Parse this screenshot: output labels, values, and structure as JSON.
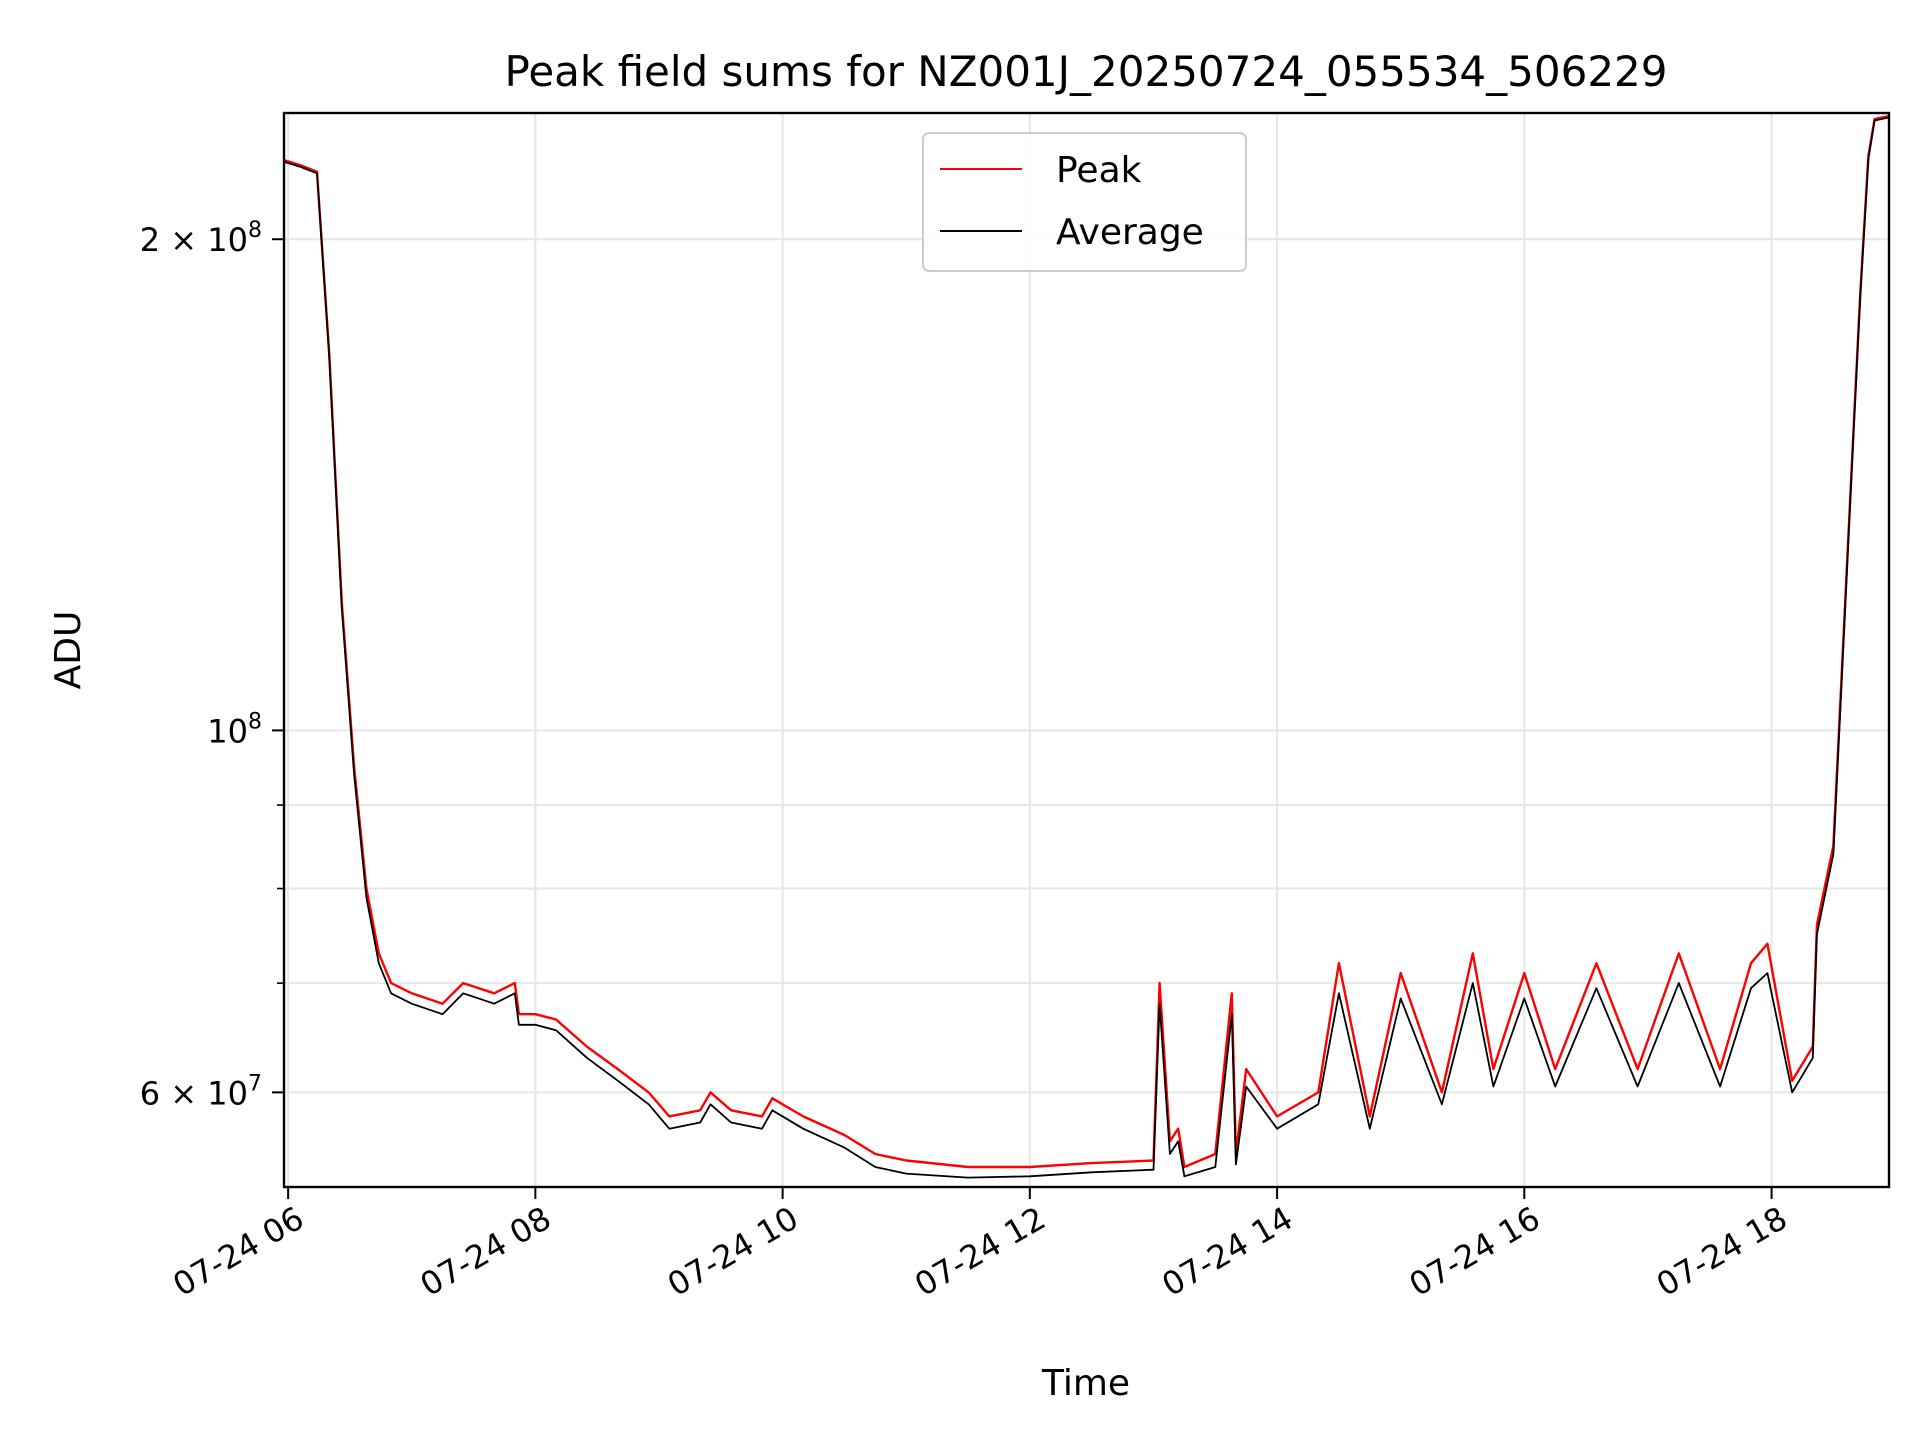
{
  "chart_data": {
    "type": "line",
    "title": "Peak field sums for NZ001J_20250724_055534_506229",
    "xlabel": "Time",
    "ylabel": "ADU",
    "yscale": "log",
    "xlim": [
      "2025-07-24T05:58",
      "2025-07-24T18:57"
    ],
    "ylim": [
      52500000,
      239000000
    ],
    "grid": true,
    "legend": "upper center",
    "x_ticks": [
      {
        "value": "2025-07-24T06:00",
        "label": "07-24 06"
      },
      {
        "value": "2025-07-24T08:00",
        "label": "07-24 08"
      },
      {
        "value": "2025-07-24T10:00",
        "label": "07-24 10"
      },
      {
        "value": "2025-07-24T12:00",
        "label": "07-24 12"
      },
      {
        "value": "2025-07-24T14:00",
        "label": "07-24 14"
      },
      {
        "value": "2025-07-24T16:00",
        "label": "07-24 16"
      },
      {
        "value": "2025-07-24T18:00",
        "label": "07-24 18"
      }
    ],
    "y_major_ticks": [
      {
        "value": 60000000,
        "base": "6 × 10",
        "exp": "7"
      },
      {
        "value": 100000000,
        "base": "10",
        "exp": "8"
      },
      {
        "value": 200000000,
        "base": "2 × 10",
        "exp": "8"
      }
    ],
    "y_minor_ticks": [
      70000000,
      80000000,
      90000000
    ],
    "series": [
      {
        "name": "Peak",
        "color": "#ff0000",
        "x": [
          "2025-07-24T05:56",
          "2025-07-24T06:06",
          "2025-07-24T06:14",
          "2025-07-24T06:20",
          "2025-07-24T06:26",
          "2025-07-24T06:32",
          "2025-07-24T06:38",
          "2025-07-24T06:44",
          "2025-07-24T06:50",
          "2025-07-24T07:00",
          "2025-07-24T07:15",
          "2025-07-24T07:25",
          "2025-07-24T07:40",
          "2025-07-24T07:50",
          "2025-07-24T07:52",
          "2025-07-24T08:00",
          "2025-07-24T08:10",
          "2025-07-24T08:25",
          "2025-07-24T08:40",
          "2025-07-24T08:55",
          "2025-07-24T09:05",
          "2025-07-24T09:20",
          "2025-07-24T09:25",
          "2025-07-24T09:35",
          "2025-07-24T09:50",
          "2025-07-24T09:55",
          "2025-07-24T10:10",
          "2025-07-24T10:30",
          "2025-07-24T10:45",
          "2025-07-24T11:00",
          "2025-07-24T11:30",
          "2025-07-24T12:00",
          "2025-07-24T12:30",
          "2025-07-24T13:00",
          "2025-07-24T13:03",
          "2025-07-24T13:08",
          "2025-07-24T13:12",
          "2025-07-24T13:15",
          "2025-07-24T13:30",
          "2025-07-24T13:38",
          "2025-07-24T13:40",
          "2025-07-24T13:45",
          "2025-07-24T14:00",
          "2025-07-24T14:20",
          "2025-07-24T14:30",
          "2025-07-24T14:45",
          "2025-07-24T15:00",
          "2025-07-24T15:20",
          "2025-07-24T15:35",
          "2025-07-24T15:45",
          "2025-07-24T16:00",
          "2025-07-24T16:15",
          "2025-07-24T16:35",
          "2025-07-24T16:55",
          "2025-07-24T17:15",
          "2025-07-24T17:35",
          "2025-07-24T17:50",
          "2025-07-24T17:58",
          "2025-07-24T18:10",
          "2025-07-24T18:20",
          "2025-07-24T18:22",
          "2025-07-24T18:30",
          "2025-07-24T18:40",
          "2025-07-24T18:43",
          "2025-07-24T18:47",
          "2025-07-24T18:50",
          "2025-07-24T18:57"
        ],
        "values": [
          224000000,
          222000000,
          220000000,
          170000000,
          120000000,
          95000000,
          80000000,
          73000000,
          70000000,
          69000000,
          68000000,
          70000000,
          69000000,
          70000000,
          67000000,
          67000000,
          66500000,
          64000000,
          62000000,
          60000000,
          58000000,
          58500000,
          60000000,
          58500000,
          58000000,
          59500000,
          58000000,
          56500000,
          55000000,
          54500000,
          54000000,
          54000000,
          54300000,
          54500000,
          70000000,
          56000000,
          57000000,
          54000000,
          55000000,
          69000000,
          55000000,
          62000000,
          58000000,
          60000000,
          72000000,
          58000000,
          71000000,
          60000000,
          73000000,
          62000000,
          71000000,
          62000000,
          72000000,
          62000000,
          73000000,
          62000000,
          72000000,
          74000000,
          61000000,
          64000000,
          76000000,
          85000000,
          155000000,
          185000000,
          225000000,
          237000000,
          238000000
        ]
      },
      {
        "name": "Average",
        "color": "#000000",
        "x": [
          "2025-07-24T05:56",
          "2025-07-24T06:06",
          "2025-07-24T06:14",
          "2025-07-24T06:20",
          "2025-07-24T06:26",
          "2025-07-24T06:32",
          "2025-07-24T06:38",
          "2025-07-24T06:44",
          "2025-07-24T06:50",
          "2025-07-24T07:00",
          "2025-07-24T07:15",
          "2025-07-24T07:25",
          "2025-07-24T07:40",
          "2025-07-24T07:50",
          "2025-07-24T07:52",
          "2025-07-24T08:00",
          "2025-07-24T08:10",
          "2025-07-24T08:25",
          "2025-07-24T08:40",
          "2025-07-24T08:55",
          "2025-07-24T09:05",
          "2025-07-24T09:20",
          "2025-07-24T09:25",
          "2025-07-24T09:35",
          "2025-07-24T09:50",
          "2025-07-24T09:55",
          "2025-07-24T10:10",
          "2025-07-24T10:30",
          "2025-07-24T10:45",
          "2025-07-24T11:00",
          "2025-07-24T11:30",
          "2025-07-24T12:00",
          "2025-07-24T12:30",
          "2025-07-24T13:00",
          "2025-07-24T13:03",
          "2025-07-24T13:08",
          "2025-07-24T13:12",
          "2025-07-24T13:15",
          "2025-07-24T13:30",
          "2025-07-24T13:38",
          "2025-07-24T13:40",
          "2025-07-24T13:45",
          "2025-07-24T14:00",
          "2025-07-24T14:20",
          "2025-07-24T14:30",
          "2025-07-24T14:45",
          "2025-07-24T15:00",
          "2025-07-24T15:20",
          "2025-07-24T15:35",
          "2025-07-24T15:45",
          "2025-07-24T16:00",
          "2025-07-24T16:15",
          "2025-07-24T16:35",
          "2025-07-24T16:55",
          "2025-07-24T17:15",
          "2025-07-24T17:35",
          "2025-07-24T17:50",
          "2025-07-24T17:58",
          "2025-07-24T18:10",
          "2025-07-24T18:20",
          "2025-07-24T18:22",
          "2025-07-24T18:30",
          "2025-07-24T18:40",
          "2025-07-24T18:43",
          "2025-07-24T18:47",
          "2025-07-24T18:50",
          "2025-07-24T18:57"
        ],
        "values": [
          223500000,
          221500000,
          219500000,
          169000000,
          119000000,
          94000000,
          79000000,
          72000000,
          69000000,
          68000000,
          67000000,
          69000000,
          68000000,
          69000000,
          66000000,
          66000000,
          65500000,
          63000000,
          61000000,
          59000000,
          57000000,
          57500000,
          59000000,
          57500000,
          57000000,
          58500000,
          57000000,
          55500000,
          54000000,
          53500000,
          53200000,
          53300000,
          53600000,
          53800000,
          68000000,
          55000000,
          56000000,
          53300000,
          54000000,
          67000000,
          54200000,
          60500000,
          57000000,
          59000000,
          69000000,
          57000000,
          68500000,
          59000000,
          70000000,
          60500000,
          68500000,
          60500000,
          69500000,
          60500000,
          70000000,
          60500000,
          69500000,
          71000000,
          60000000,
          63000000,
          75000000,
          84000000,
          154000000,
          184000000,
          224000000,
          236500000,
          237500000
        ]
      }
    ]
  }
}
